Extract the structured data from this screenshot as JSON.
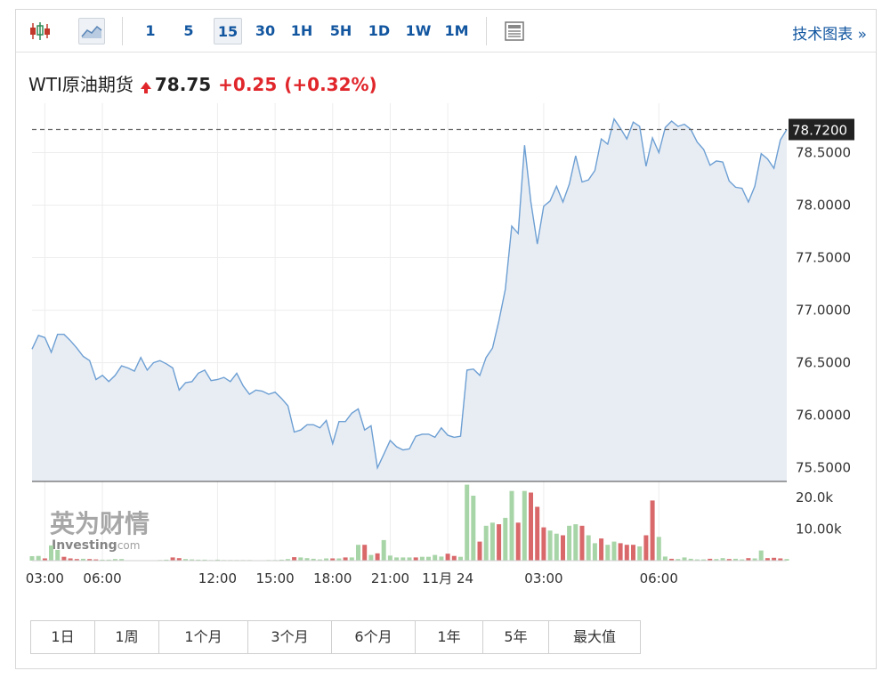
{
  "toolbar": {
    "intervals": [
      "1",
      "5",
      "15",
      "30",
      "1H",
      "5H",
      "1D",
      "1W",
      "1M"
    ],
    "active_interval": "15",
    "tech_link": "技术图表 »"
  },
  "quote": {
    "name": "WTI原油期货",
    "price": "78.75",
    "change": "+0.25",
    "change_pct": "(+0.32%)"
  },
  "watermark": {
    "brand_cn": "英为财情",
    "brand_en": "Investing",
    "suffix": ".com"
  },
  "ranges": [
    "1日",
    "1周",
    "1个月",
    "3个月",
    "6个月",
    "1年",
    "5年",
    "最大值"
  ],
  "colors": {
    "line": "#6d9fd3",
    "fill": "#e8edf4",
    "up": "#a8d5a8",
    "down": "#d9686a",
    "accent": "#1256a0",
    "price_up": "#e0262b"
  },
  "chart_data": {
    "type": "area",
    "price_axis": {
      "ticks": [
        75.5,
        76.0,
        76.5,
        77.0,
        77.5,
        78.0,
        78.5
      ],
      "tick_labels": [
        "75.5000",
        "76.0000",
        "76.5000",
        "77.0000",
        "77.5000",
        "78.0000",
        "78.5000"
      ],
      "range": [
        75.37,
        78.97
      ]
    },
    "current_price_label": "78.7200",
    "current_price": 78.72,
    "x_axis_labels": [
      "03:00",
      "06:00",
      "12:00",
      "15:00",
      "18:00",
      "21:00",
      "11月 24",
      "03:00",
      "06:00"
    ],
    "volume_axis": {
      "tick_labels": [
        "20.0k",
        "10.00k"
      ],
      "ticks": [
        20000,
        10000
      ],
      "max": 25000
    },
    "series": [
      {
        "values": [
          76.63,
          76.76,
          76.74,
          76.6,
          76.77,
          76.77,
          76.71,
          76.64,
          76.56,
          76.52,
          76.34,
          76.38,
          76.32,
          76.38,
          76.47,
          76.45,
          76.42,
          76.55,
          76.43,
          76.5,
          76.52,
          76.49,
          76.45,
          76.24,
          76.31,
          76.32,
          76.4,
          76.43,
          76.33,
          76.34,
          76.36,
          76.32,
          76.4,
          76.28,
          76.2,
          76.24,
          76.23,
          76.2,
          76.22,
          76.16,
          76.09,
          75.84,
          75.86,
          75.91,
          75.91,
          75.88,
          75.95,
          75.73,
          75.94,
          75.94,
          76.02,
          76.06,
          75.86,
          75.9,
          75.5,
          75.63,
          75.76,
          75.7,
          75.67,
          75.68,
          75.8,
          75.82,
          75.82,
          75.79,
          75.88,
          75.81,
          75.79,
          75.8,
          76.43,
          76.44,
          76.38,
          76.55,
          76.64,
          76.9,
          77.2,
          77.8,
          77.73,
          78.57,
          78.03,
          77.63,
          77.99,
          78.04,
          78.18,
          78.03,
          78.2,
          78.47,
          78.22,
          78.24,
          78.33,
          78.63,
          78.58,
          78.82,
          78.73,
          78.63,
          78.79,
          78.75,
          78.37,
          78.64,
          78.5,
          78.74,
          78.8,
          78.75,
          78.77,
          78.72,
          78.6,
          78.53,
          78.38,
          78.42,
          78.41,
          78.23,
          78.17,
          78.16,
          78.03,
          78.18,
          78.49,
          78.44,
          78.35,
          78.62,
          78.72
        ]
      }
    ],
    "volume": [
      {
        "v": 1400,
        "up": true
      },
      {
        "v": 1500,
        "up": true
      },
      {
        "v": 700,
        "up": false
      },
      {
        "v": 4800,
        "up": true
      },
      {
        "v": 3400,
        "up": true
      },
      {
        "v": 1200,
        "up": false
      },
      {
        "v": 700,
        "up": false
      },
      {
        "v": 500,
        "up": false
      },
      {
        "v": 600,
        "up": true
      },
      {
        "v": 500,
        "up": false
      },
      {
        "v": 400,
        "up": false
      },
      {
        "v": 300,
        "up": true
      },
      {
        "v": 300,
        "up": true
      },
      {
        "v": 500,
        "up": true
      },
      {
        "v": 500,
        "up": true
      },
      {
        "v": 150,
        "up": true
      },
      {
        "v": 100,
        "up": true
      },
      {
        "v": 100,
        "up": true
      },
      {
        "v": 150,
        "up": true
      },
      {
        "v": 150,
        "up": true
      },
      {
        "v": 200,
        "up": true
      },
      {
        "v": 300,
        "up": true
      },
      {
        "v": 1000,
        "up": false
      },
      {
        "v": 800,
        "up": false
      },
      {
        "v": 500,
        "up": true
      },
      {
        "v": 400,
        "up": true
      },
      {
        "v": 300,
        "up": true
      },
      {
        "v": 300,
        "up": true
      },
      {
        "v": 200,
        "up": true
      },
      {
        "v": 300,
        "up": true
      },
      {
        "v": 200,
        "up": true
      },
      {
        "v": 200,
        "up": true
      },
      {
        "v": 200,
        "up": true
      },
      {
        "v": 200,
        "up": true
      },
      {
        "v": 200,
        "up": true
      },
      {
        "v": 150,
        "up": true
      },
      {
        "v": 150,
        "up": true
      },
      {
        "v": 200,
        "up": true
      },
      {
        "v": 200,
        "up": true
      },
      {
        "v": 300,
        "up": true
      },
      {
        "v": 500,
        "up": true
      },
      {
        "v": 1100,
        "up": false
      },
      {
        "v": 1000,
        "up": true
      },
      {
        "v": 800,
        "up": true
      },
      {
        "v": 600,
        "up": true
      },
      {
        "v": 400,
        "up": true
      },
      {
        "v": 700,
        "up": true
      },
      {
        "v": 700,
        "up": false
      },
      {
        "v": 700,
        "up": true
      },
      {
        "v": 1000,
        "up": false
      },
      {
        "v": 1000,
        "up": true
      },
      {
        "v": 5000,
        "up": true
      },
      {
        "v": 5000,
        "up": false
      },
      {
        "v": 1800,
        "up": true
      },
      {
        "v": 2300,
        "up": false
      },
      {
        "v": 6500,
        "up": true
      },
      {
        "v": 1600,
        "up": true
      },
      {
        "v": 1000,
        "up": true
      },
      {
        "v": 1000,
        "up": true
      },
      {
        "v": 1000,
        "up": true
      },
      {
        "v": 1000,
        "up": false
      },
      {
        "v": 1200,
        "up": true
      },
      {
        "v": 1200,
        "up": true
      },
      {
        "v": 1800,
        "up": true
      },
      {
        "v": 1300,
        "up": true
      },
      {
        "v": 2200,
        "up": false
      },
      {
        "v": 1500,
        "up": false
      },
      {
        "v": 1200,
        "up": true
      },
      {
        "v": 24000,
        "up": true
      },
      {
        "v": 20500,
        "up": true
      },
      {
        "v": 6000,
        "up": false
      },
      {
        "v": 11000,
        "up": true
      },
      {
        "v": 12000,
        "up": true
      },
      {
        "v": 11500,
        "up": false
      },
      {
        "v": 13500,
        "up": true
      },
      {
        "v": 22000,
        "up": true
      },
      {
        "v": 12000,
        "up": false
      },
      {
        "v": 22000,
        "up": true
      },
      {
        "v": 21500,
        "up": false
      },
      {
        "v": 17000,
        "up": false
      },
      {
        "v": 10500,
        "up": false
      },
      {
        "v": 9500,
        "up": true
      },
      {
        "v": 8500,
        "up": true
      },
      {
        "v": 8000,
        "up": false
      },
      {
        "v": 11000,
        "up": true
      },
      {
        "v": 11500,
        "up": true
      },
      {
        "v": 11000,
        "up": false
      },
      {
        "v": 8000,
        "up": true
      },
      {
        "v": 5500,
        "up": true
      },
      {
        "v": 7000,
        "up": false
      },
      {
        "v": 5000,
        "up": true
      },
      {
        "v": 6000,
        "up": true
      },
      {
        "v": 5500,
        "up": false
      },
      {
        "v": 5000,
        "up": false
      },
      {
        "v": 5000,
        "up": false
      },
      {
        "v": 4500,
        "up": true
      },
      {
        "v": 8000,
        "up": false
      },
      {
        "v": 19000,
        "up": false
      },
      {
        "v": 7500,
        "up": true
      },
      {
        "v": 1300,
        "up": true
      },
      {
        "v": 600,
        "up": false
      },
      {
        "v": 500,
        "up": true
      },
      {
        "v": 1000,
        "up": true
      },
      {
        "v": 600,
        "up": true
      },
      {
        "v": 400,
        "up": true
      },
      {
        "v": 400,
        "up": true
      },
      {
        "v": 600,
        "up": false
      },
      {
        "v": 500,
        "up": true
      },
      {
        "v": 800,
        "up": true
      },
      {
        "v": 500,
        "up": false
      },
      {
        "v": 600,
        "up": true
      },
      {
        "v": 400,
        "up": true
      },
      {
        "v": 800,
        "up": false
      },
      {
        "v": 700,
        "up": true
      },
      {
        "v": 3200,
        "up": true
      },
      {
        "v": 800,
        "up": false
      },
      {
        "v": 900,
        "up": false
      },
      {
        "v": 700,
        "up": false
      },
      {
        "v": 500,
        "up": true
      }
    ],
    "grid": true,
    "crosshair_dashed": true
  }
}
